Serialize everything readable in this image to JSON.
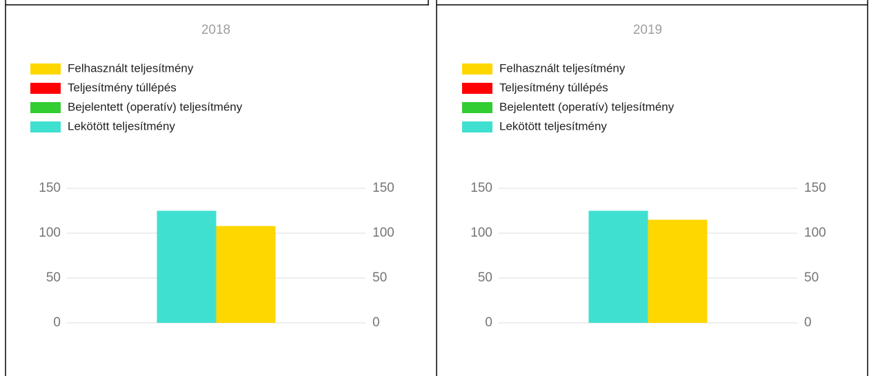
{
  "chart_data": [
    {
      "type": "bar",
      "title": "2018",
      "categories": [
        null
      ],
      "series": [
        {
          "name": "Felhasznált teljesítmény",
          "color": "#ffd700",
          "values": [
            108
          ]
        },
        {
          "name": "Teljesítmény túllépés",
          "color": "#ff0000",
          "values": [
            null
          ]
        },
        {
          "name": "Bejelentett (operatív) teljesítmény",
          "color": "#32cd32",
          "values": [
            null
          ]
        },
        {
          "name": "Lekötött teljesítmény",
          "color": "#40e0d0",
          "values": [
            125
          ]
        }
      ],
      "ylim": [
        0,
        150
      ],
      "yticks": [
        0,
        50,
        100,
        150
      ],
      "y2lim": [
        0,
        150
      ],
      "y2ticks": [
        0,
        50,
        100,
        150
      ],
      "grid": true,
      "legend": "top"
    },
    {
      "type": "bar",
      "title": "2019",
      "categories": [
        null
      ],
      "series": [
        {
          "name": "Felhasznált teljesítmény",
          "color": "#ffd700",
          "values": [
            115
          ]
        },
        {
          "name": "Teljesítmény túllépés",
          "color": "#ff0000",
          "values": [
            null
          ]
        },
        {
          "name": "Bejelentett (operatív) teljesítmény",
          "color": "#32cd32",
          "values": [
            null
          ]
        },
        {
          "name": "Lekötött teljesítmény",
          "color": "#40e0d0",
          "values": [
            125
          ]
        }
      ],
      "ylim": [
        0,
        150
      ],
      "yticks": [
        0,
        50,
        100,
        150
      ],
      "y2lim": [
        0,
        150
      ],
      "y2ticks": [
        0,
        50,
        100,
        150
      ],
      "grid": true,
      "legend": "top"
    }
  ]
}
